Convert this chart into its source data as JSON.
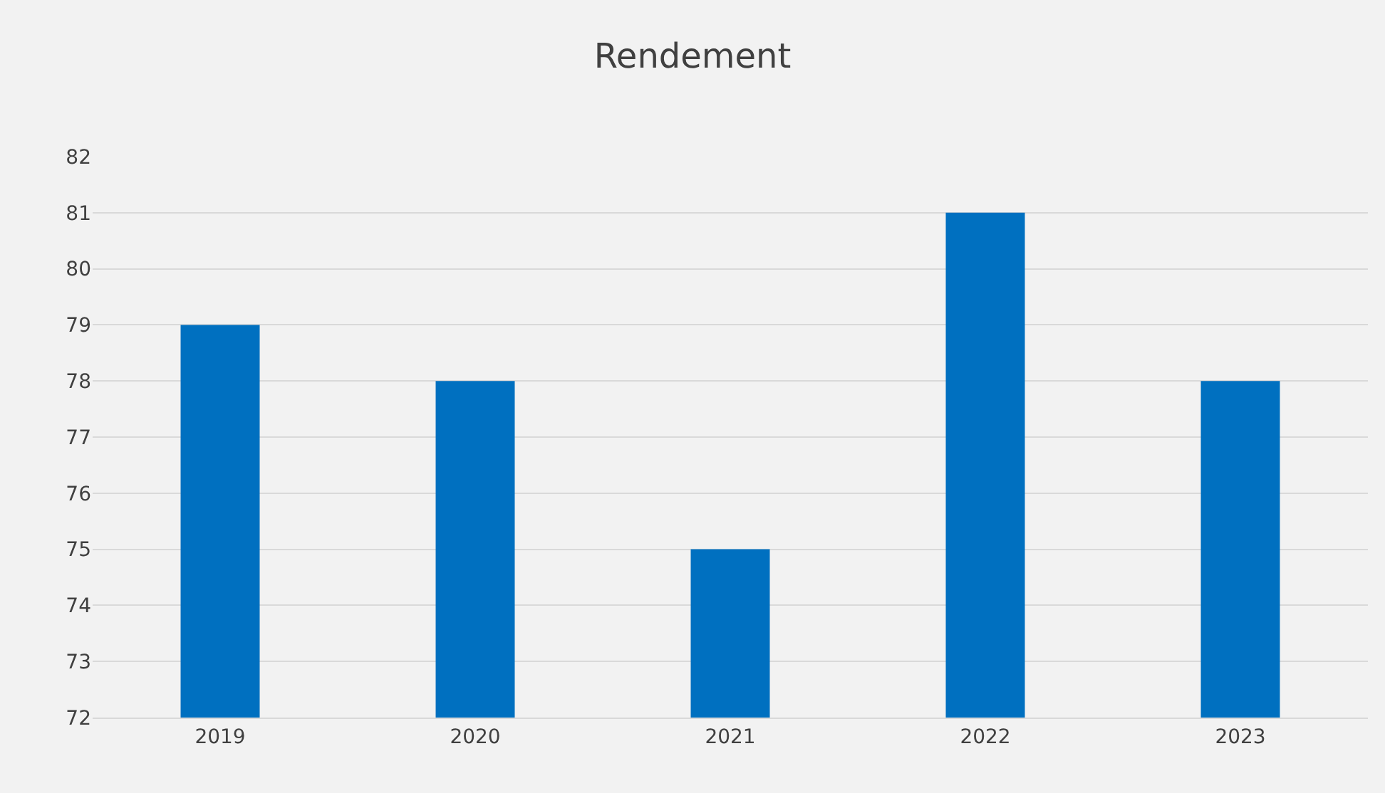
{
  "chart_data": {
    "type": "bar",
    "title": "Rendement",
    "categories": [
      "2019",
      "2020",
      "2021",
      "2022",
      "2023"
    ],
    "values": [
      79,
      78,
      75,
      81,
      78
    ],
    "color": "#0070c0",
    "ylim": [
      72,
      82
    ],
    "yticks": [
      72,
      73,
      74,
      75,
      76,
      77,
      78,
      79,
      80,
      81,
      82
    ],
    "grid": "y",
    "legend": false
  }
}
